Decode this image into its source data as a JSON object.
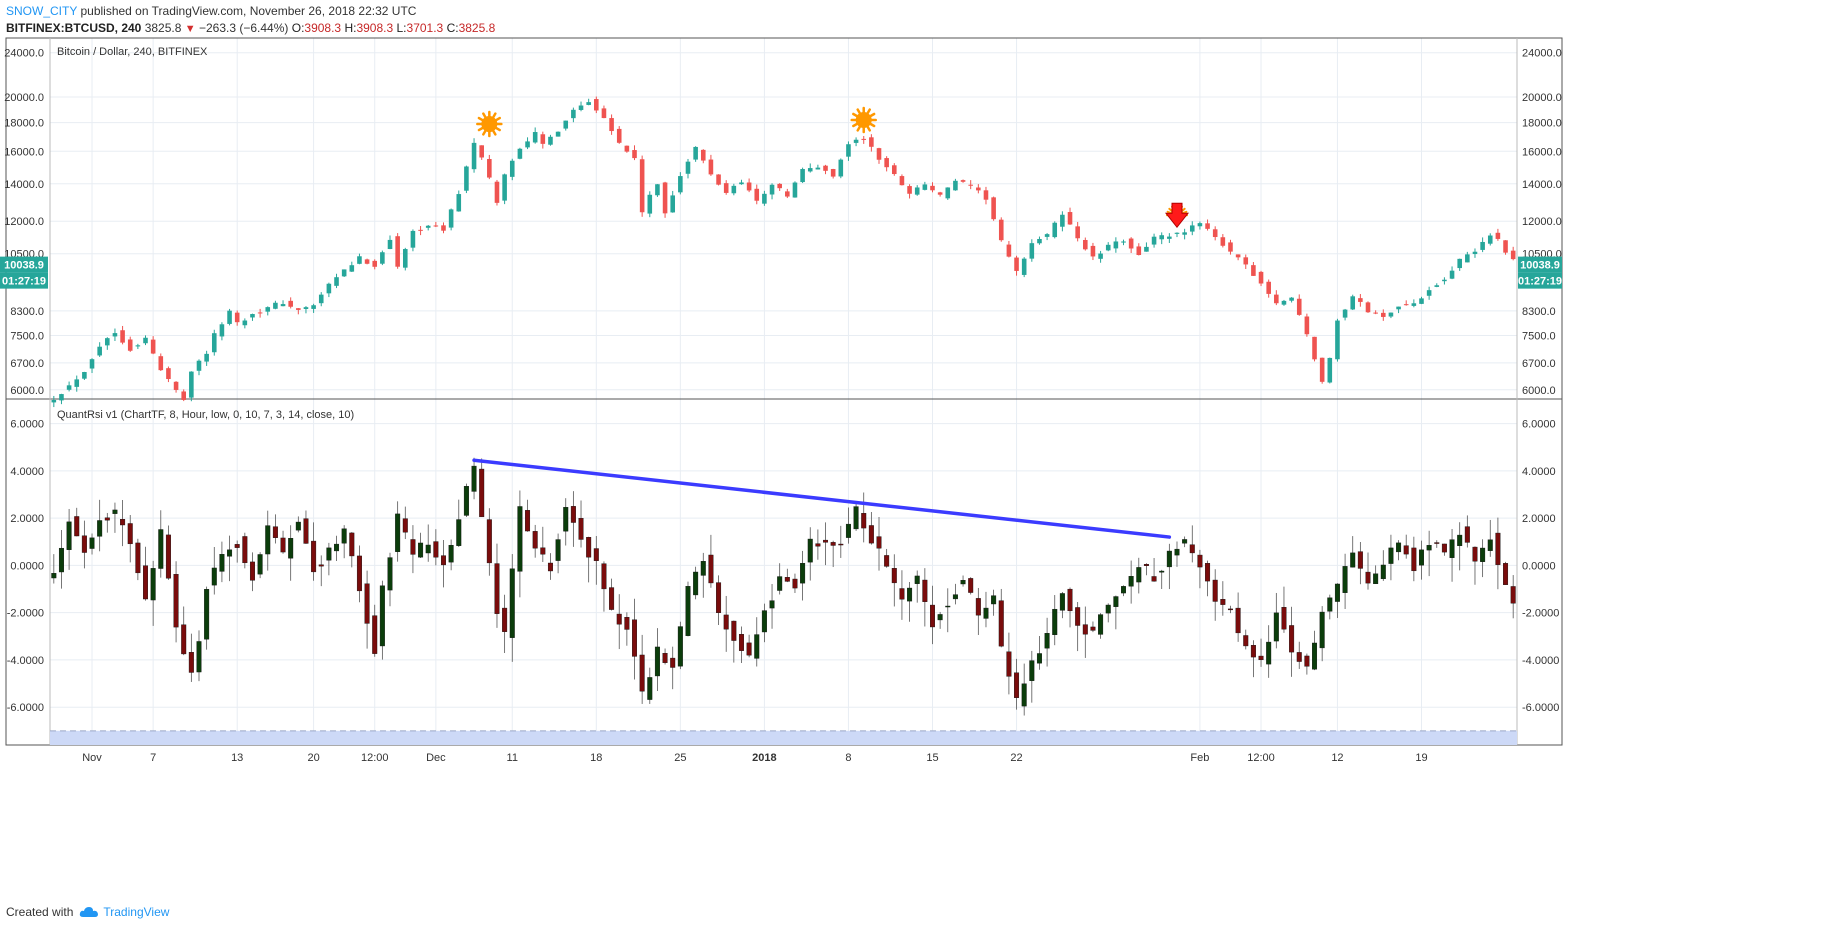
{
  "header": {
    "author": "SNOW_CITY",
    "published": "published on TradingView.com, November 26, 2018 22:32 UTC",
    "symbol": "BITFINEX:BTCUSD, 240",
    "last": "3825.8",
    "change": "−263.3 (−6.44%)",
    "open_label": "O:",
    "open": "3908.3",
    "high_label": "H:",
    "high": "3908.3",
    "low_label": "L:",
    "low": "3701.3",
    "close_label": "C:",
    "close": "3825.8"
  },
  "footer": {
    "created_with": "Created with",
    "brand": "TradingView"
  },
  "colors": {
    "up": "#26a69a",
    "down": "#ef5350",
    "rsi_up": "#0b3d0b",
    "rsi_down": "#7a0c0c",
    "trendline": "#3b3bff",
    "sun": "#ff9800",
    "arrow": "#ff1a1a",
    "band": "#cdd9f7"
  },
  "chart_data": [
    {
      "type": "candlestick",
      "title": "Bitcoin / Dollar, 240, BITFINEX",
      "scale": "log",
      "ylim": [
        5800,
        25500
      ],
      "y_ticks": [
        "24000.0",
        "20000.0",
        "18000.0",
        "16000.0",
        "14000.0",
        "12000.0",
        "10500.0",
        "8300.0",
        "7500.0",
        "6700.0",
        "6000.0"
      ],
      "price_label": "10038.9",
      "countdown_label": "01:27:19",
      "price_label_value": 10038.9,
      "anchors": [
        [
          0,
          5800
        ],
        [
          2,
          6100
        ],
        [
          4,
          6500
        ],
        [
          6,
          7200
        ],
        [
          8,
          7600
        ],
        [
          10,
          7100
        ],
        [
          12,
          7400
        ],
        [
          14,
          6500
        ],
        [
          16,
          6000
        ],
        [
          17,
          5800
        ],
        [
          18,
          6500
        ],
        [
          20,
          7000
        ],
        [
          21,
          7500
        ],
        [
          23,
          8300
        ],
        [
          24,
          7900
        ],
        [
          26,
          8200
        ],
        [
          28,
          8400
        ],
        [
          30,
          8600
        ],
        [
          32,
          8300
        ],
        [
          34,
          8500
        ],
        [
          36,
          9200
        ],
        [
          38,
          9800
        ],
        [
          40,
          10300
        ],
        [
          42,
          10000
        ],
        [
          44,
          11200
        ],
        [
          45,
          9900
        ],
        [
          47,
          11500
        ],
        [
          49,
          11800
        ],
        [
          51,
          11600
        ],
        [
          53,
          13500
        ],
        [
          55,
          16500
        ],
        [
          56,
          15500
        ],
        [
          58,
          13000
        ],
        [
          59,
          14500
        ],
        [
          61,
          16300
        ],
        [
          63,
          17200
        ],
        [
          64,
          16400
        ],
        [
          66,
          17500
        ],
        [
          68,
          19000
        ],
        [
          70,
          19700
        ],
        [
          72,
          18500
        ],
        [
          74,
          16500
        ],
        [
          76,
          15500
        ],
        [
          77,
          12500
        ],
        [
          79,
          14000
        ],
        [
          80,
          12400
        ],
        [
          82,
          14500
        ],
        [
          84,
          16200
        ],
        [
          86,
          14500
        ],
        [
          88,
          13500
        ],
        [
          90,
          14200
        ],
        [
          92,
          13000
        ],
        [
          94,
          14000
        ],
        [
          96,
          13300
        ],
        [
          98,
          14800
        ],
        [
          100,
          15000
        ],
        [
          102,
          14500
        ],
        [
          104,
          16500
        ],
        [
          106,
          16900
        ],
        [
          108,
          15500
        ],
        [
          110,
          14500
        ],
        [
          112,
          13500
        ],
        [
          114,
          14000
        ],
        [
          116,
          13300
        ],
        [
          118,
          14200
        ],
        [
          120,
          13800
        ],
        [
          122,
          13200
        ],
        [
          124,
          11000
        ],
        [
          126,
          9700
        ],
        [
          128,
          11000
        ],
        [
          130,
          11300
        ],
        [
          132,
          12400
        ],
        [
          134,
          11200
        ],
        [
          136,
          10300
        ],
        [
          138,
          10800
        ],
        [
          140,
          11100
        ],
        [
          142,
          10500
        ],
        [
          144,
          11200
        ],
        [
          146,
          11300
        ],
        [
          148,
          11400
        ],
        [
          150,
          12000
        ],
        [
          152,
          11300
        ],
        [
          154,
          10500
        ],
        [
          156,
          10000
        ],
        [
          158,
          9300
        ],
        [
          160,
          8500
        ],
        [
          162,
          8800
        ],
        [
          164,
          7500
        ],
        [
          166,
          6200
        ],
        [
          167,
          6800
        ],
        [
          168,
          8000
        ],
        [
          170,
          8800
        ],
        [
          172,
          8300
        ],
        [
          174,
          8100
        ],
        [
          176,
          8500
        ],
        [
          178,
          8500
        ],
        [
          180,
          9100
        ],
        [
          182,
          9500
        ],
        [
          184,
          10200
        ],
        [
          186,
          10600
        ],
        [
          188,
          11400
        ],
        [
          189,
          11100
        ],
        [
          191,
          10200
        ]
      ],
      "markers": [
        {
          "shape": "sun",
          "at": 57,
          "price": 17900
        },
        {
          "shape": "sun",
          "at": 106,
          "price": 18200
        },
        {
          "shape": "arrow-down",
          "at": 147,
          "price": 12000
        }
      ]
    },
    {
      "type": "candlestick",
      "title": "QuantRsi v1 (ChartTF, 8, Hour, low, 0, 10, 7, 3, 14, close, 10)",
      "ylim": [
        -7.6,
        7.0
      ],
      "y_ticks": [
        "6.0000",
        "4.0000",
        "2.0000",
        "0.0000",
        "-2.0000",
        "-4.0000",
        "-6.0000"
      ],
      "y_tick_values": [
        6,
        4,
        2,
        0,
        -2,
        -4,
        -6
      ],
      "band": [
        -7.6,
        -7.0
      ],
      "anchors": [
        [
          0,
          -0.5
        ],
        [
          2,
          2.0
        ],
        [
          4,
          0.5
        ],
        [
          6,
          2.0
        ],
        [
          8,
          2.2
        ],
        [
          10,
          1.0
        ],
        [
          12,
          -1.5
        ],
        [
          14,
          1.5
        ],
        [
          16,
          -2.5
        ],
        [
          18,
          -4.5
        ],
        [
          19,
          -3.0
        ],
        [
          20,
          -1.0
        ],
        [
          22,
          0.5
        ],
        [
          24,
          1.0
        ],
        [
          26,
          -0.5
        ],
        [
          28,
          1.5
        ],
        [
          30,
          0.5
        ],
        [
          32,
          2.0
        ],
        [
          34,
          -0.2
        ],
        [
          36,
          0.5
        ],
        [
          38,
          1.5
        ],
        [
          40,
          -1.0
        ],
        [
          42,
          -3.5
        ],
        [
          43,
          -1.0
        ],
        [
          45,
          2.0
        ],
        [
          47,
          0.5
        ],
        [
          49,
          1.0
        ],
        [
          51,
          0.0
        ],
        [
          53,
          2.0
        ],
        [
          55,
          4.3
        ],
        [
          56,
          2.0
        ],
        [
          58,
          -2.0
        ],
        [
          59,
          -3.0
        ],
        [
          61,
          2.5
        ],
        [
          63,
          0.5
        ],
        [
          65,
          0.0
        ],
        [
          67,
          2.5
        ],
        [
          69,
          1.0
        ],
        [
          71,
          0.0
        ],
        [
          73,
          -2.0
        ],
        [
          75,
          -2.5
        ],
        [
          77,
          -5.5
        ],
        [
          79,
          -3.5
        ],
        [
          81,
          -4.5
        ],
        [
          83,
          -1.0
        ],
        [
          85,
          0.2
        ],
        [
          87,
          -2.0
        ],
        [
          89,
          -3.0
        ],
        [
          91,
          -4.0
        ],
        [
          93,
          -2.0
        ],
        [
          95,
          -0.5
        ],
        [
          97,
          -1.0
        ],
        [
          99,
          1.0
        ],
        [
          101,
          0.8
        ],
        [
          103,
          1.0
        ],
        [
          105,
          2.3
        ],
        [
          107,
          1.0
        ],
        [
          109,
          0.0
        ],
        [
          111,
          -1.5
        ],
        [
          113,
          -0.5
        ],
        [
          115,
          -2.5
        ],
        [
          117,
          -1.5
        ],
        [
          119,
          -0.5
        ],
        [
          121,
          -2.0
        ],
        [
          123,
          -1.5
        ],
        [
          124,
          -3.5
        ],
        [
          126,
          -5.8
        ],
        [
          128,
          -4.0
        ],
        [
          130,
          -3.0
        ],
        [
          132,
          -1.0
        ],
        [
          134,
          -2.5
        ],
        [
          136,
          -3.0
        ],
        [
          138,
          -1.5
        ],
        [
          140,
          -1.0
        ],
        [
          142,
          0.0
        ],
        [
          144,
          -0.5
        ],
        [
          146,
          0.5
        ],
        [
          148,
          1.0
        ],
        [
          150,
          0.0
        ],
        [
          152,
          -1.5
        ],
        [
          154,
          -2.0
        ],
        [
          156,
          -3.5
        ],
        [
          158,
          -4.0
        ],
        [
          160,
          -2.0
        ],
        [
          162,
          -3.5
        ],
        [
          164,
          -4.5
        ],
        [
          166,
          -2.0
        ],
        [
          168,
          -1.0
        ],
        [
          170,
          0.5
        ],
        [
          172,
          -1.0
        ],
        [
          174,
          0.0
        ],
        [
          176,
          1.0
        ],
        [
          178,
          0.0
        ],
        [
          180,
          1.0
        ],
        [
          182,
          0.5
        ],
        [
          184,
          1.5
        ],
        [
          186,
          0.0
        ],
        [
          188,
          1.2
        ],
        [
          190,
          -1.0
        ],
        [
          191,
          -1.5
        ]
      ],
      "trendline": [
        [
          55,
          4.45
        ],
        [
          146,
          1.2
        ]
      ]
    }
  ],
  "x_axis": [
    {
      "label": "Nov",
      "at": 5,
      "bold": false
    },
    {
      "label": "7",
      "at": 13,
      "bold": false
    },
    {
      "label": "13",
      "at": 24,
      "bold": false
    },
    {
      "label": "20",
      "at": 34,
      "bold": false
    },
    {
      "label": "12:00",
      "at": 42,
      "bold": false
    },
    {
      "label": "Dec",
      "at": 50,
      "bold": false
    },
    {
      "label": "11",
      "at": 60,
      "bold": false
    },
    {
      "label": "18",
      "at": 71,
      "bold": false
    },
    {
      "label": "25",
      "at": 82,
      "bold": false
    },
    {
      "label": "2018",
      "at": 93,
      "bold": true
    },
    {
      "label": "8",
      "at": 104,
      "bold": false
    },
    {
      "label": "15",
      "at": 115,
      "bold": false
    },
    {
      "label": "22",
      "at": 126,
      "bold": false
    },
    {
      "label": "Feb",
      "at": 150,
      "bold": false
    },
    {
      "label": "12:00",
      "at": 158,
      "bold": false
    },
    {
      "label": "12",
      "at": 168,
      "bold": false
    },
    {
      "label": "19",
      "at": 179,
      "bold": false
    }
  ]
}
